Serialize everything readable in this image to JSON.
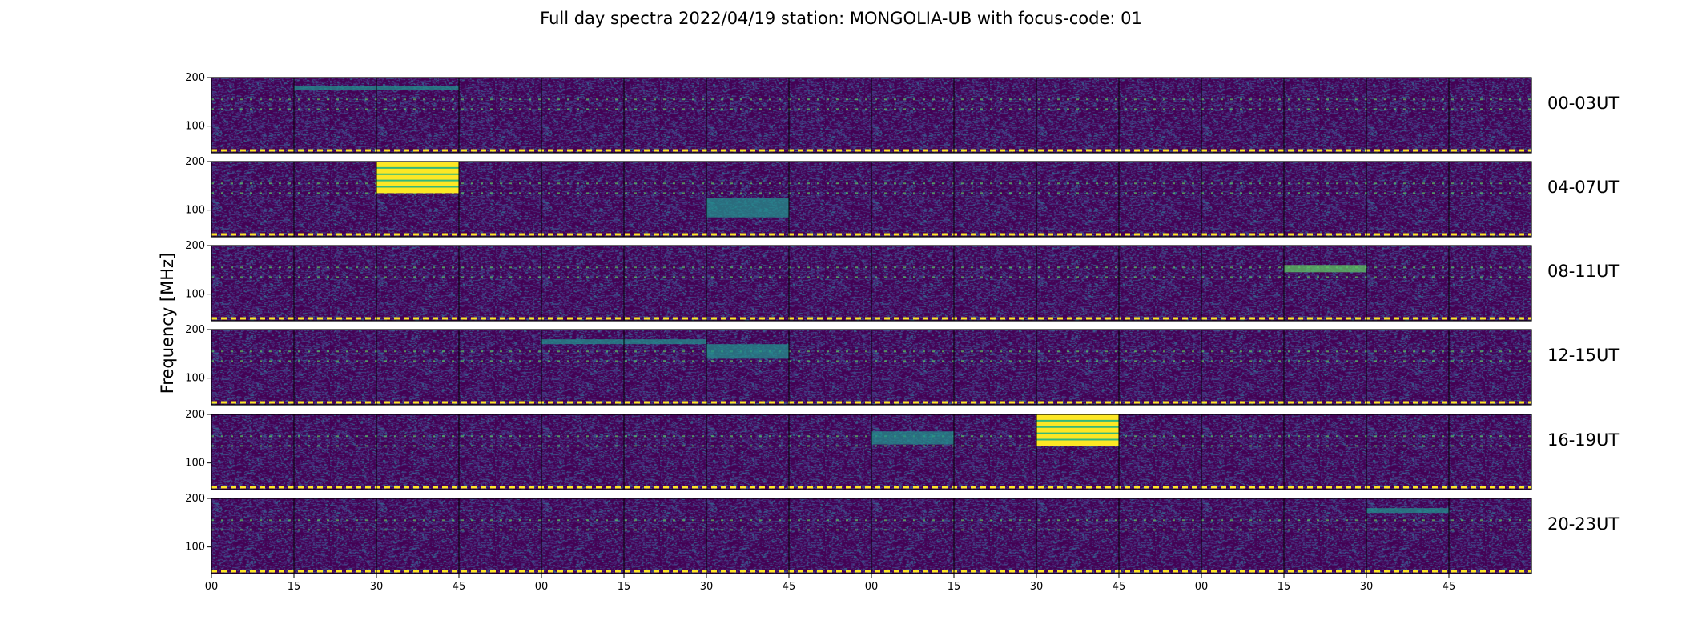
{
  "chart_data": {
    "type": "heatmap",
    "title": "Full day spectra 2022/04/19 station: MONGOLIA-UB with focus-code: 01",
    "ylabel": "Frequency [MHz]",
    "xlabel": "",
    "colormap": "viridis",
    "colors": {
      "background": "#440154",
      "low": "#3b0f70",
      "mid": "#21918c",
      "high": "#5ec962",
      "saturated": "#fde725"
    },
    "ylim": [
      45,
      200
    ],
    "y_ticks": [
      100,
      200
    ],
    "x_tick_labels": [
      "00",
      "15",
      "30",
      "45",
      "00",
      "15",
      "30",
      "45",
      "00",
      "15",
      "30",
      "45",
      "00",
      "15",
      "30",
      "45"
    ],
    "panels_per_row": 16,
    "minutes_per_panel": 15,
    "rows": [
      {
        "label": "00-03UT"
      },
      {
        "label": "04-07UT"
      },
      {
        "label": "08-11UT"
      },
      {
        "label": "12-15UT"
      },
      {
        "label": "16-19UT"
      },
      {
        "label": "20-23UT"
      }
    ],
    "persistent_bands_mhz": [
      155,
      135,
      50
    ],
    "high_intensity_blocks": [
      {
        "row": 1,
        "panel": 2,
        "freq_min": 135,
        "freq_max": 200,
        "intensity": "saturated"
      },
      {
        "row": 4,
        "panel": 10,
        "freq_min": 135,
        "freq_max": 200,
        "intensity": "saturated"
      },
      {
        "row": 4,
        "panel": 8,
        "freq_min": 138,
        "freq_max": 165,
        "intensity": "mid"
      },
      {
        "row": 1,
        "panel": 6,
        "freq_min": 85,
        "freq_max": 125,
        "intensity": "mid"
      },
      {
        "row": 3,
        "panel": 6,
        "freq_min": 140,
        "freq_max": 170,
        "intensity": "mid"
      },
      {
        "row": 2,
        "panel": 13,
        "freq_min": 145,
        "freq_max": 160,
        "intensity": "high"
      },
      {
        "row": 0,
        "panel": 1,
        "freq_min": 175,
        "freq_max": 182,
        "intensity": "mid"
      },
      {
        "row": 0,
        "panel": 2,
        "freq_min": 175,
        "freq_max": 182,
        "intensity": "mid"
      },
      {
        "row": 3,
        "panel": 4,
        "freq_min": 170,
        "freq_max": 180,
        "intensity": "mid"
      },
      {
        "row": 3,
        "panel": 5,
        "freq_min": 170,
        "freq_max": 180,
        "intensity": "mid"
      },
      {
        "row": 5,
        "panel": 14,
        "freq_min": 170,
        "freq_max": 180,
        "intensity": "mid"
      }
    ]
  }
}
